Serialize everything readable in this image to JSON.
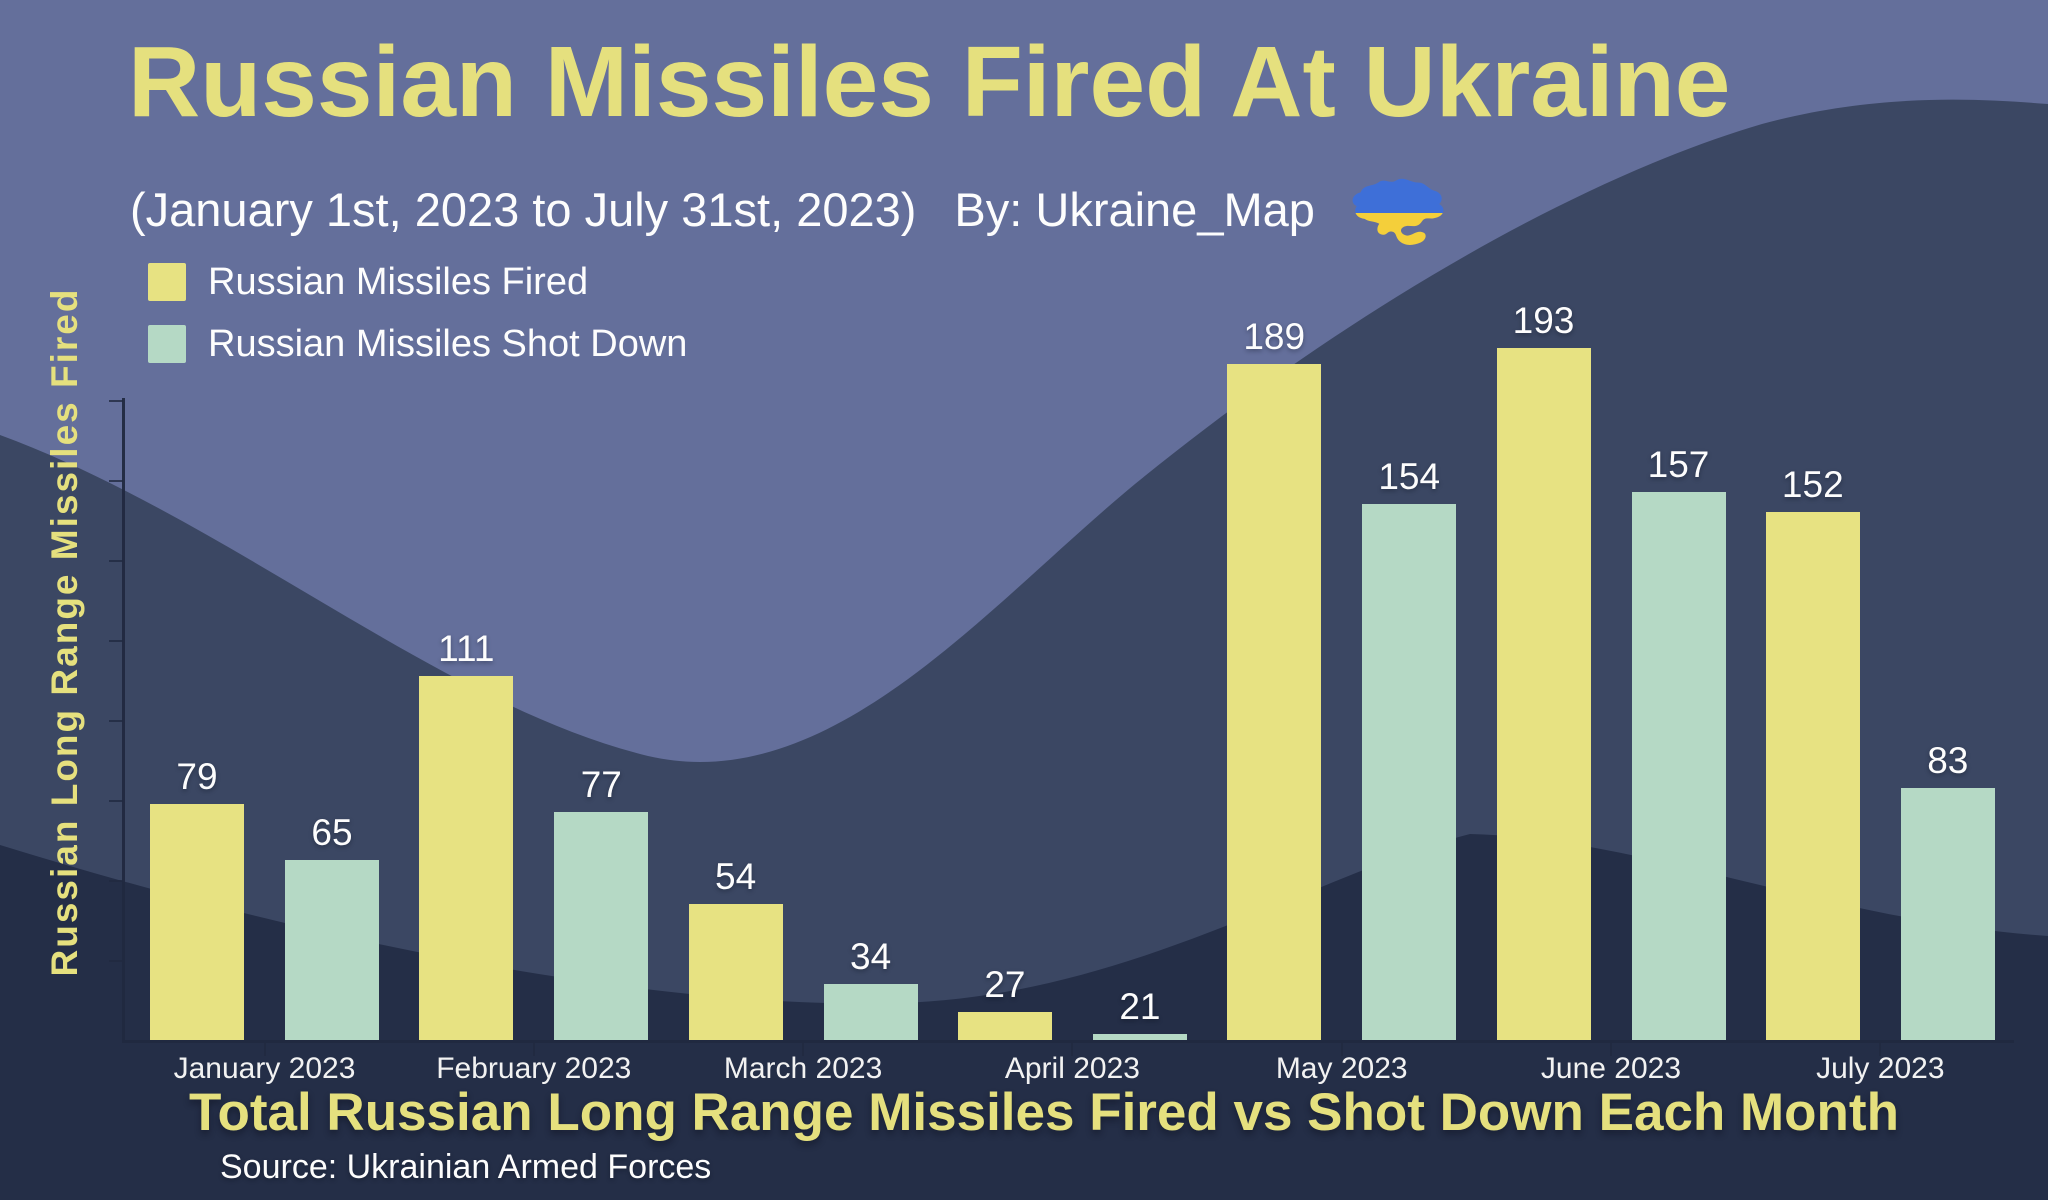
{
  "header": {
    "title": "Russian Missiles Fired At Ukraine",
    "period": "(January 1st, 2023 to July 31st, 2023)",
    "byline": "By: Ukraine_Map",
    "flag_icon": "ukraine-map-flag"
  },
  "legend": {
    "items": [
      {
        "label": "Russian Missiles Fired",
        "color": "#e7e282"
      },
      {
        "label": "Russian Missiles Shot Down",
        "color": "#b5d9c5"
      }
    ]
  },
  "chart_data": {
    "type": "bar",
    "title": "Total Russian Long Range Missiles Fired vs Shot Down Each Month",
    "ylabel": "Russian Long Range Missiles Fired",
    "xlabel": "",
    "categories": [
      "January 2023",
      "February 2023",
      "March 2023",
      "April 2023",
      "May 2023",
      "June 2023",
      "July 2023"
    ],
    "series": [
      {
        "name": "Russian Missiles Fired",
        "color": "#e7e282",
        "values": [
          79,
          111,
          54,
          27,
          189,
          193,
          152
        ]
      },
      {
        "name": "Russian Missiles Shot Down",
        "color": "#b5d9c5",
        "values": [
          65,
          77,
          34,
          21,
          154,
          157,
          83
        ]
      }
    ],
    "data_labels": true,
    "grid": false,
    "legend_position": "top-left"
  },
  "footer": {
    "source": "Source: Ukrainian Armed Forces"
  },
  "colors": {
    "background_light": "#646f9b",
    "wave_mid": "#3b4763",
    "wave_dark": "#242e47",
    "bar_fired": "#e7e282",
    "bar_shot_down": "#b5d9c5",
    "accent_text": "#e5e07e",
    "text_white": "#fdfdfd",
    "flag_blue": "#3e6fd8",
    "flag_yellow": "#f4cf3a"
  }
}
